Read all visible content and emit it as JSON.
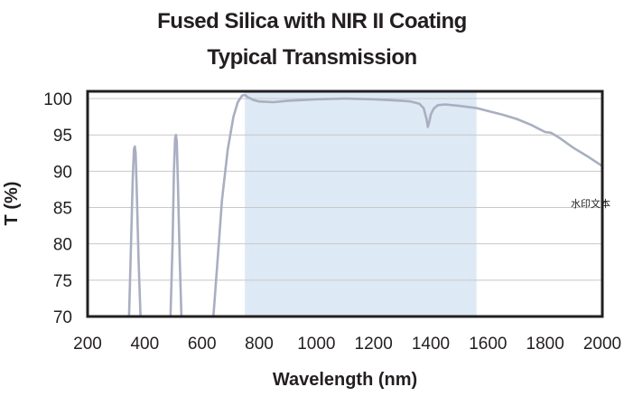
{
  "chart_data": {
    "type": "line",
    "title": "Fused Silica with NIR II Coating",
    "subtitle": "Typical Transmission",
    "xlabel": "Wavelength (nm)",
    "ylabel": "T (%)",
    "xlim": [
      200,
      2000
    ],
    "ylim": [
      70,
      101
    ],
    "x_ticks": [
      200,
      400,
      600,
      800,
      1000,
      1200,
      1400,
      1600,
      1800,
      2000
    ],
    "y_ticks": [
      70,
      75,
      80,
      85,
      90,
      95,
      100
    ],
    "grid": "horizontal",
    "highlight_band": [
      750,
      1560
    ],
    "colors": {
      "line": "#a9afc1",
      "band": "#dde9f5",
      "frame": "#231f20",
      "grid": "#c8c8c8"
    },
    "series": [
      {
        "x": [
          345,
          352,
          358,
          362,
          365,
          368,
          372,
          378,
          385,
          490,
          497,
          502,
          506,
          509,
          512,
          516,
          522,
          528,
          640,
          655,
          670,
          690,
          710,
          725,
          740,
          750,
          760,
          780,
          800,
          850,
          900,
          1000,
          1100,
          1200,
          1300,
          1330,
          1360,
          1375,
          1385,
          1390,
          1395,
          1400,
          1410,
          1425,
          1450,
          1500,
          1560,
          1600,
          1650,
          1700,
          1750,
          1780,
          1800,
          1820,
          1850,
          1900,
          1950,
          2000
        ],
        "y": [
          70,
          80,
          89,
          93,
          93.4,
          92.5,
          87,
          78,
          70,
          70,
          80,
          90,
          94.5,
          95,
          94,
          88,
          78,
          70,
          70,
          78,
          86,
          93,
          97.5,
          99.5,
          100.4,
          100.5,
          100.2,
          99.8,
          99.6,
          99.5,
          99.7,
          99.9,
          100,
          99.9,
          99.7,
          99.6,
          99.3,
          98.7,
          97.2,
          96.1,
          96.8,
          97.8,
          98.6,
          99.1,
          99.2,
          99,
          98.7,
          98.3,
          97.8,
          97.2,
          96.4,
          95.8,
          95.4,
          95.3,
          94.6,
          93.2,
          92,
          90.7
        ]
      }
    ]
  },
  "watermark": "水印文本",
  "icons": {
    "watermark": "watermark-text"
  }
}
